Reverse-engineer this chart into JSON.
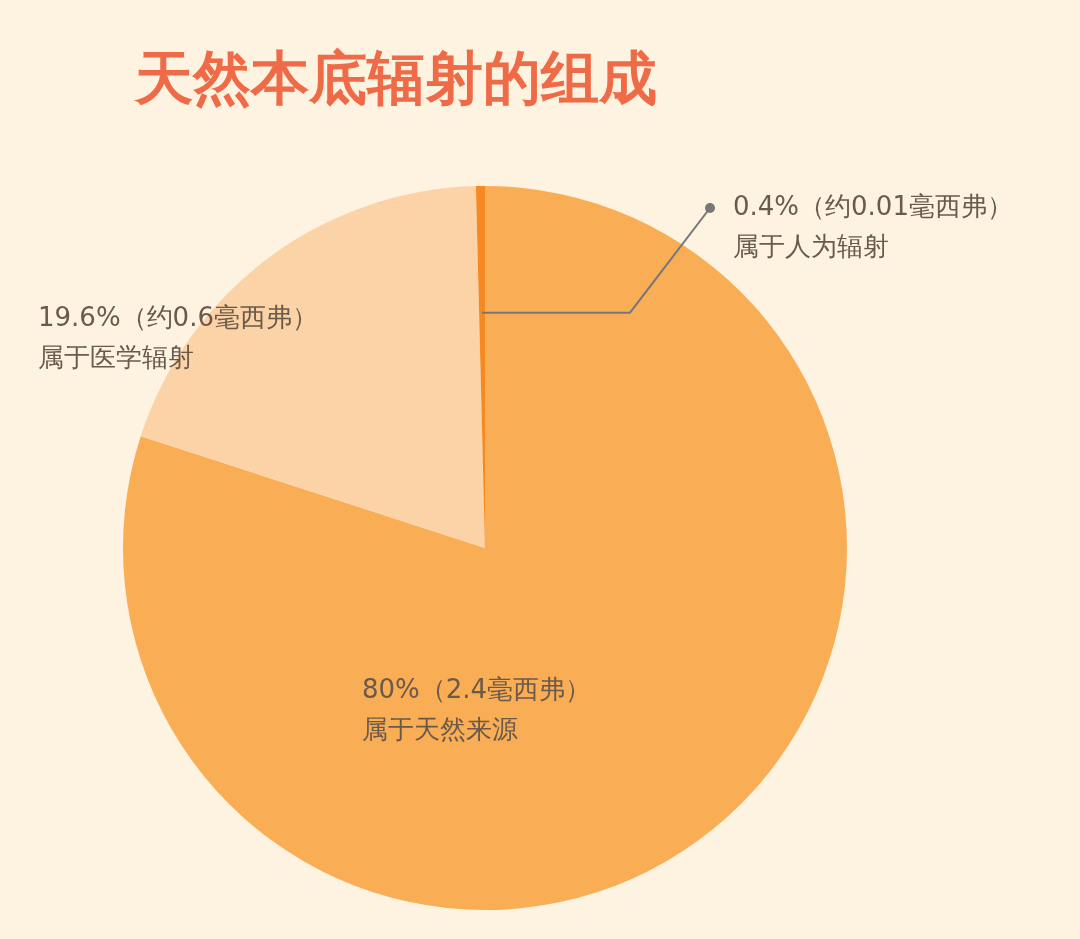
{
  "chart_data": {
    "type": "pie",
    "title": "天然本底辐射的组成",
    "categories": [
      "属于天然来源",
      "属于医学辐射",
      "属于人为辐射"
    ],
    "values": [
      80,
      19.6,
      0.4
    ],
    "value_labels": [
      "80%（2.4毫西弗）",
      "19.6%（约0.6毫西弗）",
      "0.4%（约0.01毫西弗）"
    ],
    "colors": [
      "#f9ad55",
      "#fbd3a7",
      "#f68a22"
    ]
  }
}
